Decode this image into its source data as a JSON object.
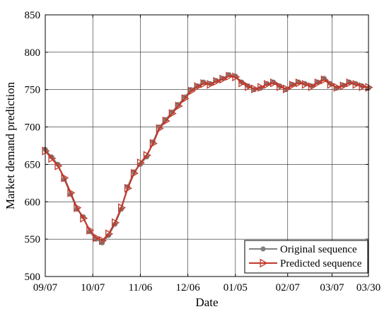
{
  "chart_data": {
    "type": "line",
    "xlabel": "Date",
    "ylabel": "Market demand prediction",
    "ylim": [
      500,
      850
    ],
    "yticks": [
      500,
      550,
      600,
      650,
      700,
      750,
      800,
      850
    ],
    "xticks": [
      {
        "label": "09/07",
        "date": "2022-09-07"
      },
      {
        "label": "10/07",
        "date": "2022-10-07"
      },
      {
        "label": "11/06",
        "date": "2022-11-06"
      },
      {
        "label": "12/06",
        "date": "2022-12-06"
      },
      {
        "label": "01/05",
        "date": "2023-01-05"
      },
      {
        "label": "02/07",
        "date": "2023-02-07"
      },
      {
        "label": "03/07",
        "date": "2023-03-07"
      },
      {
        "label": "03/30",
        "date": "2023-03-30"
      }
    ],
    "xlim": [
      "2022-09-07",
      "2023-03-30"
    ],
    "grid": true,
    "legend_position": "bottom-right",
    "series": [
      {
        "name": "Original sequence",
        "color": "#808080",
        "marker": "circle",
        "x": [
          "2022-09-07",
          "2022-09-11",
          "2022-09-15",
          "2022-09-19",
          "2022-09-23",
          "2022-09-27",
          "2022-10-01",
          "2022-10-05",
          "2022-10-09",
          "2022-10-13",
          "2022-10-17",
          "2022-10-21",
          "2022-10-25",
          "2022-10-29",
          "2022-11-02",
          "2022-11-06",
          "2022-11-10",
          "2022-11-14",
          "2022-11-18",
          "2022-11-22",
          "2022-11-26",
          "2022-11-30",
          "2022-12-04",
          "2022-12-08",
          "2022-12-12",
          "2022-12-16",
          "2022-12-20",
          "2022-12-24",
          "2022-12-28",
          "2023-01-01",
          "2023-01-05",
          "2023-01-09",
          "2023-01-13",
          "2023-01-17",
          "2023-01-21",
          "2023-01-25",
          "2023-01-29",
          "2023-02-02",
          "2023-02-06",
          "2023-02-10",
          "2023-02-14",
          "2023-02-18",
          "2023-02-22",
          "2023-02-26",
          "2023-03-02",
          "2023-03-06",
          "2023-03-10",
          "2023-03-14",
          "2023-03-18",
          "2023-03-22",
          "2023-03-26",
          "2023-03-30"
        ],
        "y": [
          670,
          660,
          650,
          630,
          610,
          590,
          580,
          560,
          550,
          545,
          555,
          570,
          590,
          620,
          640,
          650,
          660,
          680,
          700,
          710,
          720,
          730,
          740,
          750,
          755,
          760,
          758,
          762,
          765,
          770,
          768,
          760,
          755,
          750,
          752,
          758,
          760,
          755,
          750,
          757,
          760,
          758,
          755,
          760,
          765,
          758,
          752,
          756,
          760,
          758,
          755,
          752
        ]
      },
      {
        "name": "Predicted sequence",
        "color": "#c0392b",
        "marker": "triangle-right",
        "x": [
          "2022-09-07",
          "2022-09-11",
          "2022-09-15",
          "2022-09-19",
          "2022-09-23",
          "2022-09-27",
          "2022-10-01",
          "2022-10-05",
          "2022-10-09",
          "2022-10-13",
          "2022-10-17",
          "2022-10-21",
          "2022-10-25",
          "2022-10-29",
          "2022-11-02",
          "2022-11-06",
          "2022-11-10",
          "2022-11-14",
          "2022-11-18",
          "2022-11-22",
          "2022-11-26",
          "2022-11-30",
          "2022-12-04",
          "2022-12-08",
          "2022-12-12",
          "2022-12-16",
          "2022-12-20",
          "2022-12-24",
          "2022-12-28",
          "2023-01-01",
          "2023-01-05",
          "2023-01-09",
          "2023-01-13",
          "2023-01-17",
          "2023-01-21",
          "2023-01-25",
          "2023-01-29",
          "2023-02-02",
          "2023-02-06",
          "2023-02-10",
          "2023-02-14",
          "2023-02-18",
          "2023-02-22",
          "2023-02-26",
          "2023-03-02",
          "2023-03-06",
          "2023-03-10",
          "2023-03-14",
          "2023-03-18",
          "2023-03-22",
          "2023-03-26",
          "2023-03-30"
        ],
        "y": [
          668,
          658,
          648,
          632,
          612,
          592,
          578,
          562,
          552,
          548,
          557,
          572,
          592,
          618,
          638,
          652,
          662,
          678,
          698,
          708,
          718,
          728,
          738,
          748,
          754,
          758,
          757,
          761,
          764,
          768,
          767,
          759,
          754,
          751,
          753,
          757,
          759,
          754,
          751,
          756,
          759,
          757,
          754,
          759,
          763,
          757,
          753,
          755,
          759,
          757,
          754,
          753
        ]
      }
    ]
  }
}
